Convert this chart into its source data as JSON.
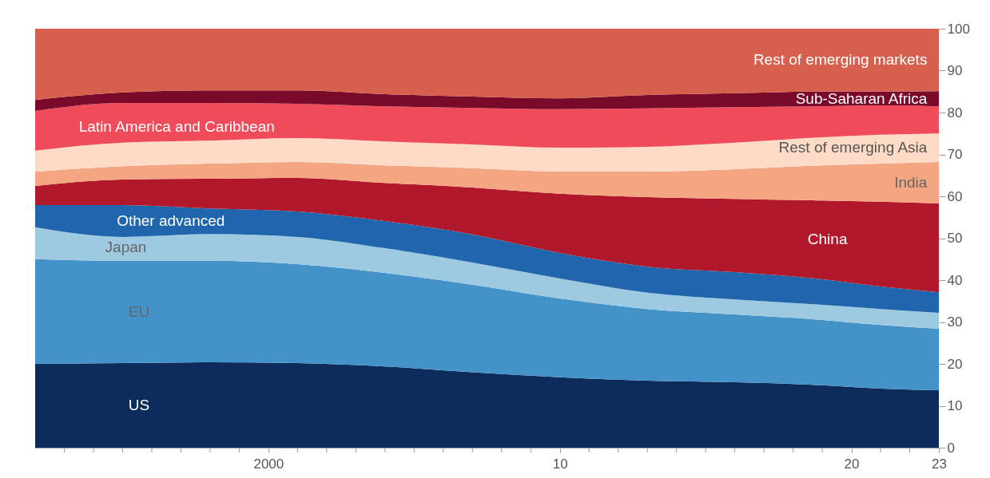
{
  "chart_data": {
    "type": "area",
    "stacked": true,
    "x": [
      1992,
      1995,
      1998,
      2001,
      2004,
      2007,
      2010,
      2013,
      2016,
      2019,
      2021,
      2023
    ],
    "series": [
      {
        "name": "US",
        "color": "#0d2b5b",
        "values": [
          20,
          20.2,
          20.4,
          20.2,
          19.4,
          18,
          16.8,
          16,
          15.6,
          14.9,
          14.1,
          13.7
        ]
      },
      {
        "name": "EU",
        "color": "#4393c9",
        "values": [
          25,
          24.4,
          24.2,
          23.6,
          22.3,
          20.9,
          18.8,
          17.1,
          16.2,
          15.6,
          15.2,
          14.7
        ]
      },
      {
        "name": "Japan",
        "color": "#9ecae1",
        "values": [
          7.6,
          5.7,
          6.4,
          6.5,
          5.9,
          5.3,
          4.8,
          3.9,
          3.6,
          3.6,
          3.8,
          3.8
        ]
      },
      {
        "name": "Other advanced",
        "color": "#2166ac",
        "values": [
          5.3,
          7.6,
          6.1,
          6.1,
          6.5,
          6.7,
          6.1,
          6.2,
          6.5,
          6.1,
          5.4,
          4.9
        ]
      },
      {
        "name": "China",
        "color": "#b2182b",
        "values": [
          4.6,
          6.1,
          7.1,
          8,
          9.1,
          11.2,
          14.1,
          16.6,
          17.5,
          18.8,
          20.2,
          21.2
        ]
      },
      {
        "name": "India",
        "color": "#f4a582",
        "values": [
          3.4,
          3.2,
          3.6,
          3.8,
          4.2,
          4.6,
          5.3,
          6.1,
          7.1,
          8.4,
          9.1,
          9.9
        ]
      },
      {
        "name": "Rest of emerging Asia",
        "color": "#fddbc7",
        "values": [
          5,
          5.6,
          5.5,
          5.7,
          5.7,
          5.7,
          5.7,
          5.9,
          6.3,
          6.7,
          6.9,
          6.8
        ]
      },
      {
        "name": "Latin America and Caribbean",
        "color": "#ef4b5a",
        "values": [
          9.5,
          9.5,
          9,
          8.2,
          8.4,
          8.7,
          9.2,
          9.2,
          8.5,
          7.4,
          7,
          6.5
        ]
      },
      {
        "name": "Sub-Saharan Africa",
        "color": "#7a0a2a",
        "values": [
          2.6,
          2.5,
          3,
          3.2,
          2.9,
          2.7,
          2.6,
          3.2,
          3.3,
          3.5,
          3.3,
          3.6
        ]
      },
      {
        "name": "Rest of emerging markets",
        "color": "#d6604d",
        "values": [
          17,
          15.2,
          14.7,
          14.7,
          15.6,
          16.2,
          16.6,
          15.8,
          15.4,
          15,
          15,
          14.9
        ]
      }
    ],
    "xlim": [
      1992,
      2023
    ],
    "xticks": [
      {
        "value": 1993,
        "label": null
      },
      {
        "value": 1994,
        "label": null
      },
      {
        "value": 1995,
        "label": null
      },
      {
        "value": 1996,
        "label": null
      },
      {
        "value": 1997,
        "label": null
      },
      {
        "value": 1998,
        "label": null
      },
      {
        "value": 1999,
        "label": null
      },
      2000,
      {
        "value": 2001,
        "label": null
      },
      {
        "value": 2002,
        "label": null
      },
      {
        "value": 2003,
        "label": null
      },
      {
        "value": 2004,
        "label": null
      },
      {
        "value": 2005,
        "label": null
      },
      {
        "value": 2006,
        "label": null
      },
      {
        "value": 2007,
        "label": null
      },
      {
        "value": 2008,
        "label": null
      },
      {
        "value": 2009,
        "label": null
      },
      {
        "value": 2010,
        "label": "10"
      },
      {
        "value": 2011,
        "label": null
      },
      {
        "value": 2012,
        "label": null
      },
      {
        "value": 2013,
        "label": null
      },
      {
        "value": 2014,
        "label": null
      },
      {
        "value": 2015,
        "label": null
      },
      {
        "value": 2016,
        "label": null
      },
      {
        "value": 2017,
        "label": null
      },
      {
        "value": 2018,
        "label": null
      },
      {
        "value": 2019,
        "label": null
      },
      {
        "value": 2020,
        "label": "20"
      },
      {
        "value": 2021,
        "label": null
      },
      {
        "value": 2022,
        "label": null
      },
      {
        "value": 2023,
        "label": "23"
      }
    ],
    "ylim": [
      0,
      100
    ],
    "yticks": [
      0,
      10,
      20,
      30,
      40,
      50,
      60,
      70,
      80,
      90,
      100
    ],
    "grid": false,
    "legend": false
  }
}
